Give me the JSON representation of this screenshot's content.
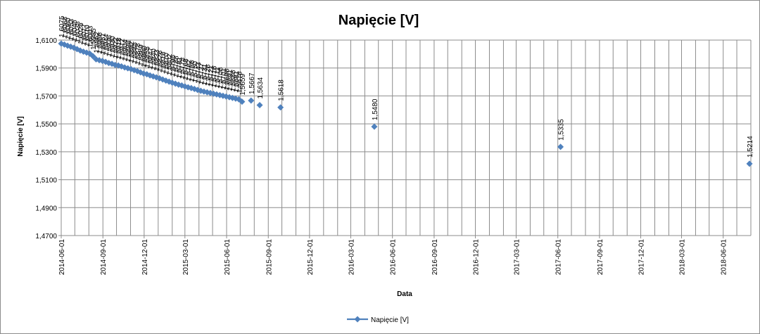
{
  "chart_data": {
    "type": "line",
    "title": "Napięcie [V]",
    "xlabel": "Data",
    "ylabel": "Napięcie [V]",
    "ylim": [
      1.47,
      1.61
    ],
    "y_ticks": [
      "1,4700",
      "1,4900",
      "1,5100",
      "1,5300",
      "1,5500",
      "1,5700",
      "1,5900",
      "1,6100"
    ],
    "xlim": [
      "2014-06-01",
      "2018-08-01"
    ],
    "x_ticks": [
      "2014-06-01",
      "2014-09-01",
      "2014-12-01",
      "2015-03-01",
      "2015-06-01",
      "2015-09-01",
      "2015-12-01",
      "2016-03-01",
      "2016-06-01",
      "2016-09-01",
      "2016-12-01",
      "2017-03-01",
      "2017-06-01",
      "2017-09-01",
      "2017-12-01",
      "2018-03-01",
      "2018-06-01"
    ],
    "grid": "on",
    "legend_position": "bottom",
    "series": [
      {
        "name": "Napięcie [V]",
        "color": "#4f81bd",
        "line": false,
        "marker": "diamond",
        "points": [
          {
            "date": "2014-06-01",
            "value": 1.6075
          },
          {
            "date": "2014-06-08",
            "value": 1.6068
          },
          {
            "date": "2014-06-15",
            "value": 1.606
          },
          {
            "date": "2014-06-22",
            "value": 1.6053
          },
          {
            "date": "2014-06-29",
            "value": 1.6045
          },
          {
            "date": "2014-07-06",
            "value": 1.6035
          },
          {
            "date": "2014-07-13",
            "value": 1.6025
          },
          {
            "date": "2014-07-20",
            "value": 1.6017
          },
          {
            "date": "2014-07-27",
            "value": 1.601
          },
          {
            "date": "2014-08-03",
            "value": 1.6003
          },
          {
            "date": "2014-08-10",
            "value": 1.5985
          },
          {
            "date": "2014-08-17",
            "value": 1.5962
          },
          {
            "date": "2014-08-24",
            "value": 1.5956
          },
          {
            "date": "2014-08-31",
            "value": 1.5951
          },
          {
            "date": "2014-09-07",
            "value": 1.5944
          },
          {
            "date": "2014-09-14",
            "value": 1.5936
          },
          {
            "date": "2014-09-21",
            "value": 1.593
          },
          {
            "date": "2014-09-28",
            "value": 1.5922
          },
          {
            "date": "2014-10-05",
            "value": 1.5918
          },
          {
            "date": "2014-10-12",
            "value": 1.5912
          },
          {
            "date": "2014-10-19",
            "value": 1.5904
          },
          {
            "date": "2014-10-26",
            "value": 1.5898
          },
          {
            "date": "2014-11-02",
            "value": 1.5892
          },
          {
            "date": "2014-11-09",
            "value": 1.5885
          },
          {
            "date": "2014-11-16",
            "value": 1.5878
          },
          {
            "date": "2014-11-23",
            "value": 1.5869
          },
          {
            "date": "2014-11-30",
            "value": 1.586
          },
          {
            "date": "2014-12-07",
            "value": 1.5855
          },
          {
            "date": "2014-12-14",
            "value": 1.5847
          },
          {
            "date": "2014-12-21",
            "value": 1.584
          },
          {
            "date": "2014-12-28",
            "value": 1.5833
          },
          {
            "date": "2015-01-04",
            "value": 1.5826
          },
          {
            "date": "2015-01-11",
            "value": 1.5818
          },
          {
            "date": "2015-01-18",
            "value": 1.581
          },
          {
            "date": "2015-01-25",
            "value": 1.5802
          },
          {
            "date": "2015-02-01",
            "value": 1.5795
          },
          {
            "date": "2015-02-08",
            "value": 1.5788
          },
          {
            "date": "2015-02-15",
            "value": 1.5781
          },
          {
            "date": "2015-02-22",
            "value": 1.5775
          },
          {
            "date": "2015-03-01",
            "value": 1.5768
          },
          {
            "date": "2015-03-08",
            "value": 1.5762
          },
          {
            "date": "2015-03-15",
            "value": 1.5756
          },
          {
            "date": "2015-03-22",
            "value": 1.575
          },
          {
            "date": "2015-03-29",
            "value": 1.5743
          },
          {
            "date": "2015-04-05",
            "value": 1.5737
          },
          {
            "date": "2015-04-12",
            "value": 1.5731
          },
          {
            "date": "2015-04-19",
            "value": 1.5726
          },
          {
            "date": "2015-04-26",
            "value": 1.5721
          },
          {
            "date": "2015-05-03",
            "value": 1.5716
          },
          {
            "date": "2015-05-10",
            "value": 1.5711
          },
          {
            "date": "2015-05-17",
            "value": 1.5706
          },
          {
            "date": "2015-05-24",
            "value": 1.5701
          },
          {
            "date": "2015-05-31",
            "value": 1.5696
          },
          {
            "date": "2015-06-07",
            "value": 1.5691
          },
          {
            "date": "2015-06-14",
            "value": 1.5686
          },
          {
            "date": "2015-06-21",
            "value": 1.5681
          },
          {
            "date": "2015-06-28",
            "value": 1.5676
          },
          {
            "date": "2015-07-05",
            "value": 1.5659
          },
          {
            "date": "2015-07-25",
            "value": 1.5667
          },
          {
            "date": "2015-08-13",
            "value": 1.5634
          },
          {
            "date": "2015-09-28",
            "value": 1.5618
          },
          {
            "date": "2016-04-22",
            "value": 1.548
          },
          {
            "date": "2017-06-07",
            "value": 1.5335
          },
          {
            "date": "2018-07-29",
            "value": 1.5214
          }
        ]
      }
    ]
  }
}
